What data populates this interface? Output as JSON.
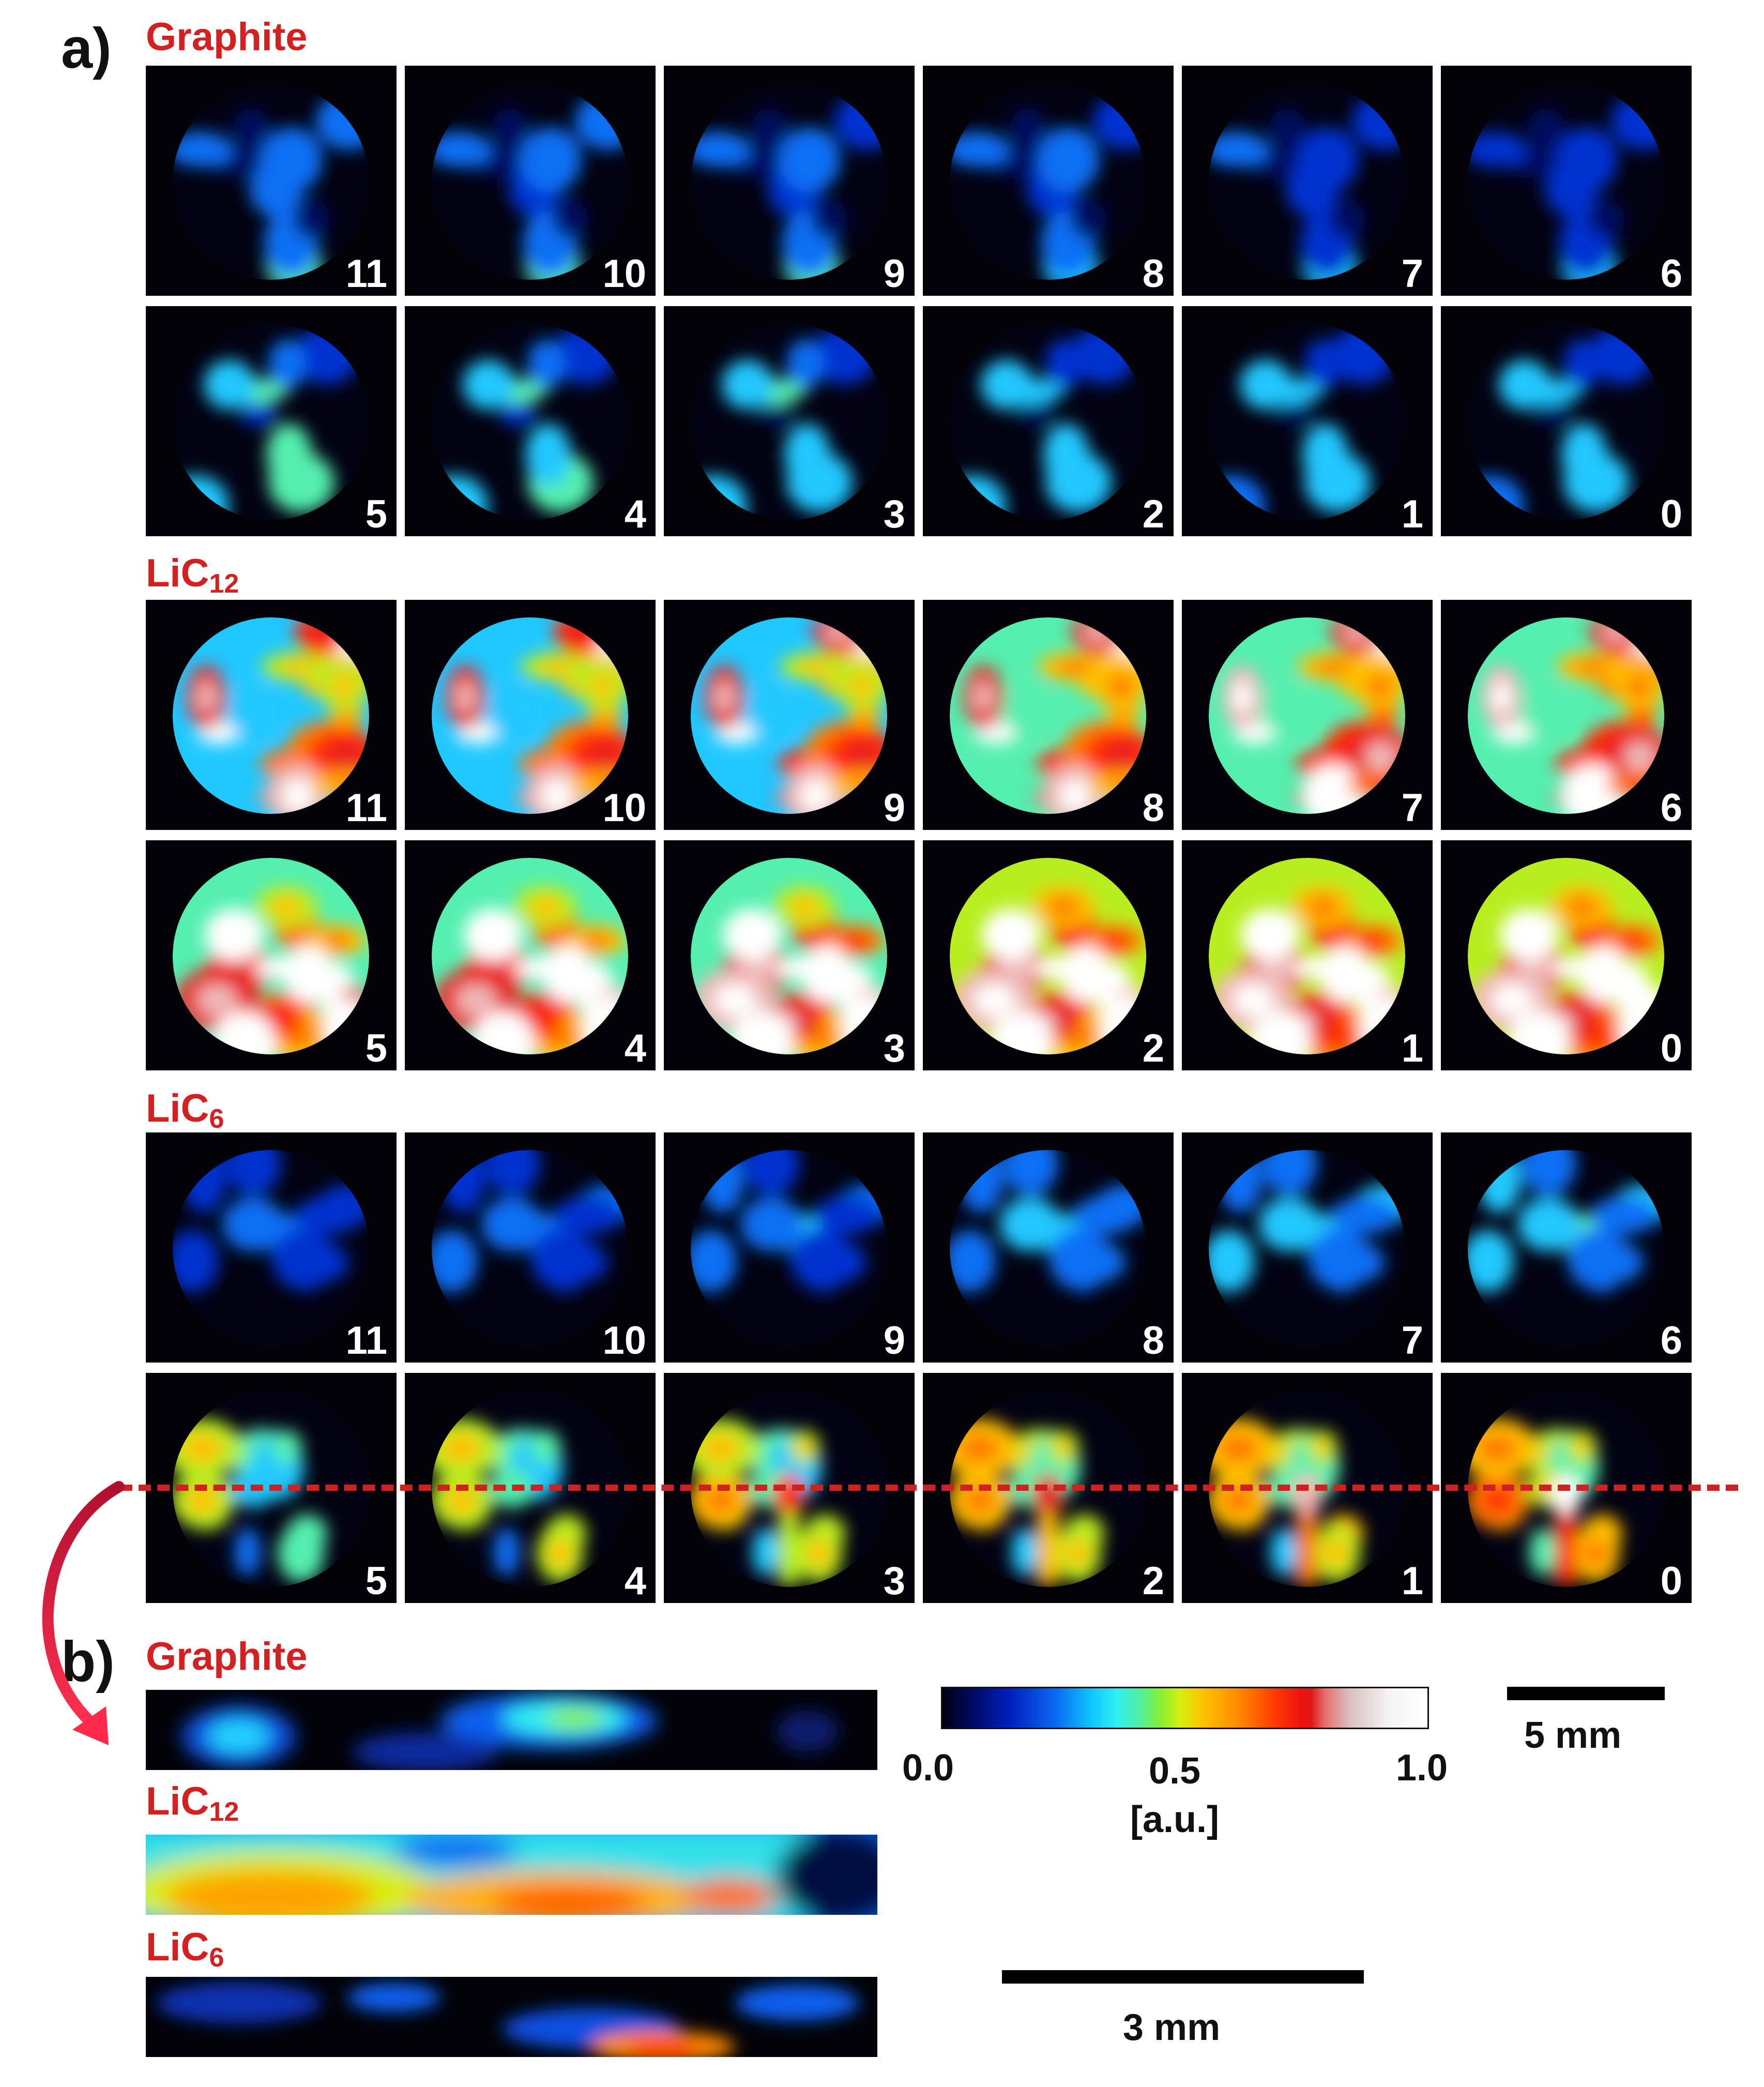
{
  "panel_a": {
    "letter": "a)"
  },
  "panel_b": {
    "letter": "b)"
  },
  "sections": [
    {
      "name": "Graphite",
      "sub": "",
      "color": "#d32020",
      "rows": [
        [
          "11",
          "10",
          "9",
          "8",
          "7",
          "6"
        ],
        [
          "5",
          "4",
          "3",
          "2",
          "1",
          "0"
        ]
      ]
    },
    {
      "name": "LiC",
      "sub": "12",
      "color": "#d32020",
      "rows": [
        [
          "11",
          "10",
          "9",
          "8",
          "7",
          "6"
        ],
        [
          "5",
          "4",
          "3",
          "2",
          "1",
          "0"
        ]
      ]
    },
    {
      "name": "LiC",
      "sub": "6",
      "color": "#d32020",
      "rows": [
        [
          "11",
          "10",
          "9",
          "8",
          "7",
          "6"
        ],
        [
          "5",
          "4",
          "3",
          "2",
          "1",
          "0"
        ]
      ]
    }
  ],
  "strips": [
    {
      "name": "Graphite",
      "sub": ""
    },
    {
      "name": "LiC",
      "sub": "12"
    },
    {
      "name": "LiC",
      "sub": "6"
    }
  ],
  "colorbar": {
    "ticks": [
      "0.0",
      "0.5",
      "1.0"
    ],
    "unit": "[a.u.]"
  },
  "scalebars": {
    "large": "5 mm",
    "small": "3 mm"
  }
}
